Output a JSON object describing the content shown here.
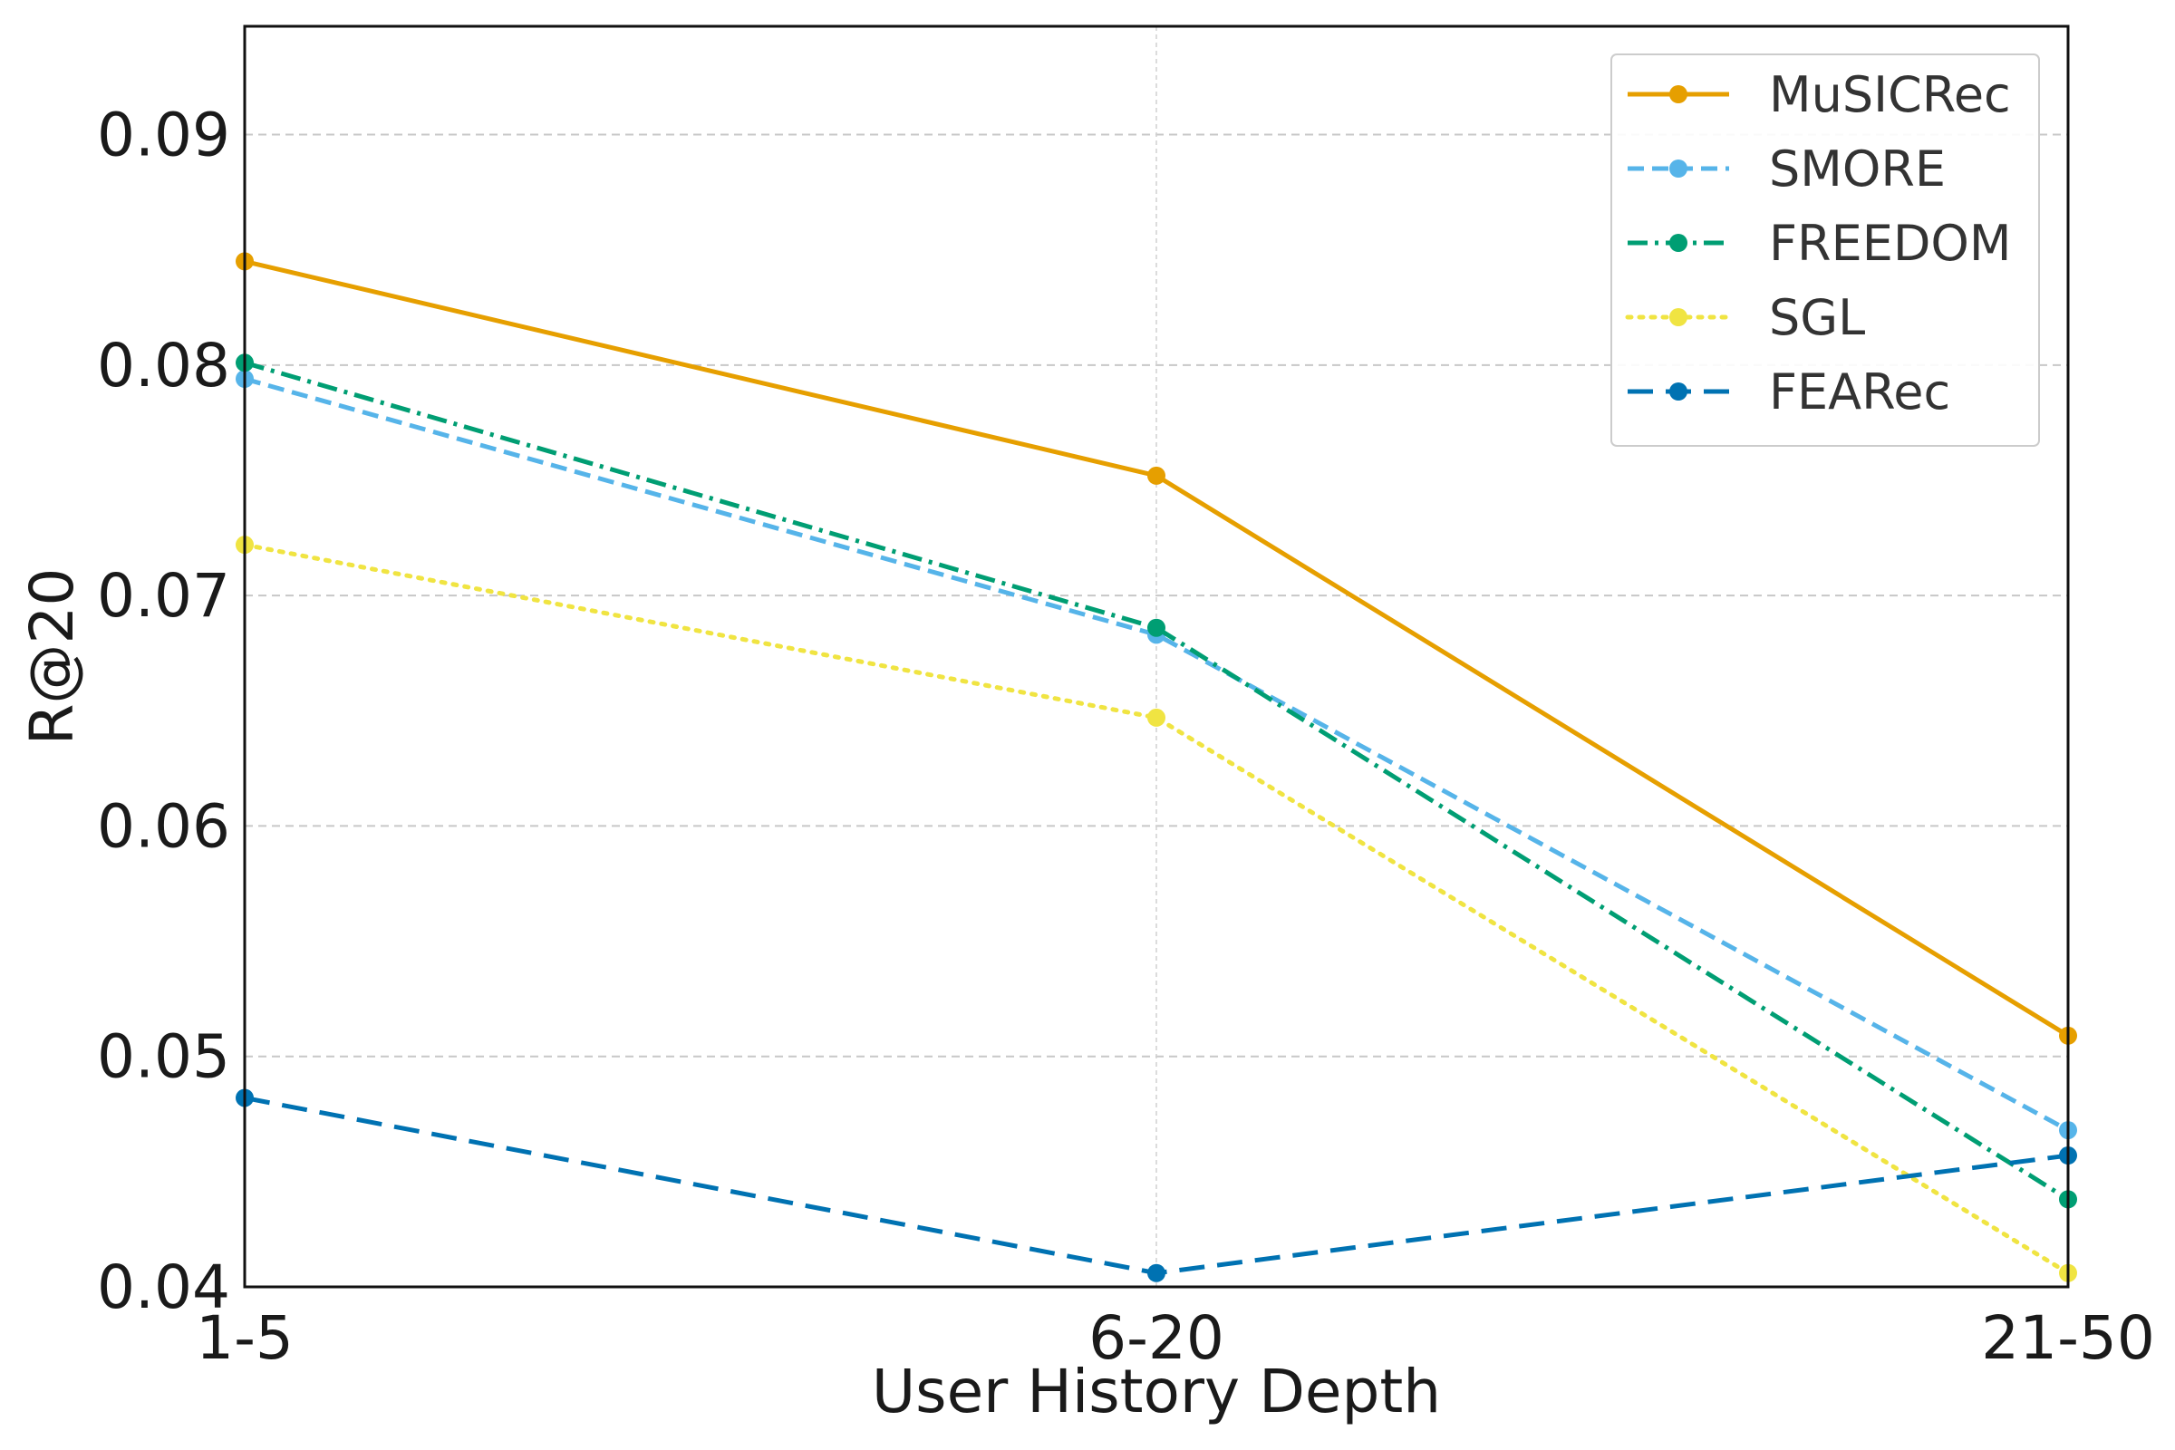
{
  "chart_data": {
    "type": "line",
    "title": "",
    "xlabel": "User History Depth",
    "ylabel": "R@20",
    "categories": [
      "1-5",
      "6-20",
      "21-50"
    ],
    "ylim": [
      0.04,
      0.0947
    ],
    "yticks": [
      0.04,
      0.05,
      0.06,
      0.07,
      0.08,
      0.09
    ],
    "ytick_labels": [
      "0.04",
      "0.05",
      "0.06",
      "0.07",
      "0.08",
      "0.09"
    ],
    "grid": true,
    "legend_position": "top-right",
    "series": [
      {
        "name": "MuSICRec",
        "values": [
          0.0845,
          0.0752,
          0.0509
        ],
        "color": "#E69F00",
        "linestyle": "solid"
      },
      {
        "name": "SMORE",
        "values": [
          0.0794,
          0.0683,
          0.0468
        ],
        "color": "#56B4E9",
        "linestyle": "dashed"
      },
      {
        "name": "FREEDOM",
        "values": [
          0.0801,
          0.0686,
          0.0438
        ],
        "color": "#009E73",
        "linestyle": "dashdot"
      },
      {
        "name": "SGL",
        "values": [
          0.0722,
          0.0647,
          0.0406
        ],
        "color": "#F0E442",
        "linestyle": "dotted"
      },
      {
        "name": "FEARec",
        "values": [
          0.0482,
          0.0406,
          0.0457
        ],
        "color": "#0072B2",
        "linestyle": "longdash"
      }
    ]
  }
}
